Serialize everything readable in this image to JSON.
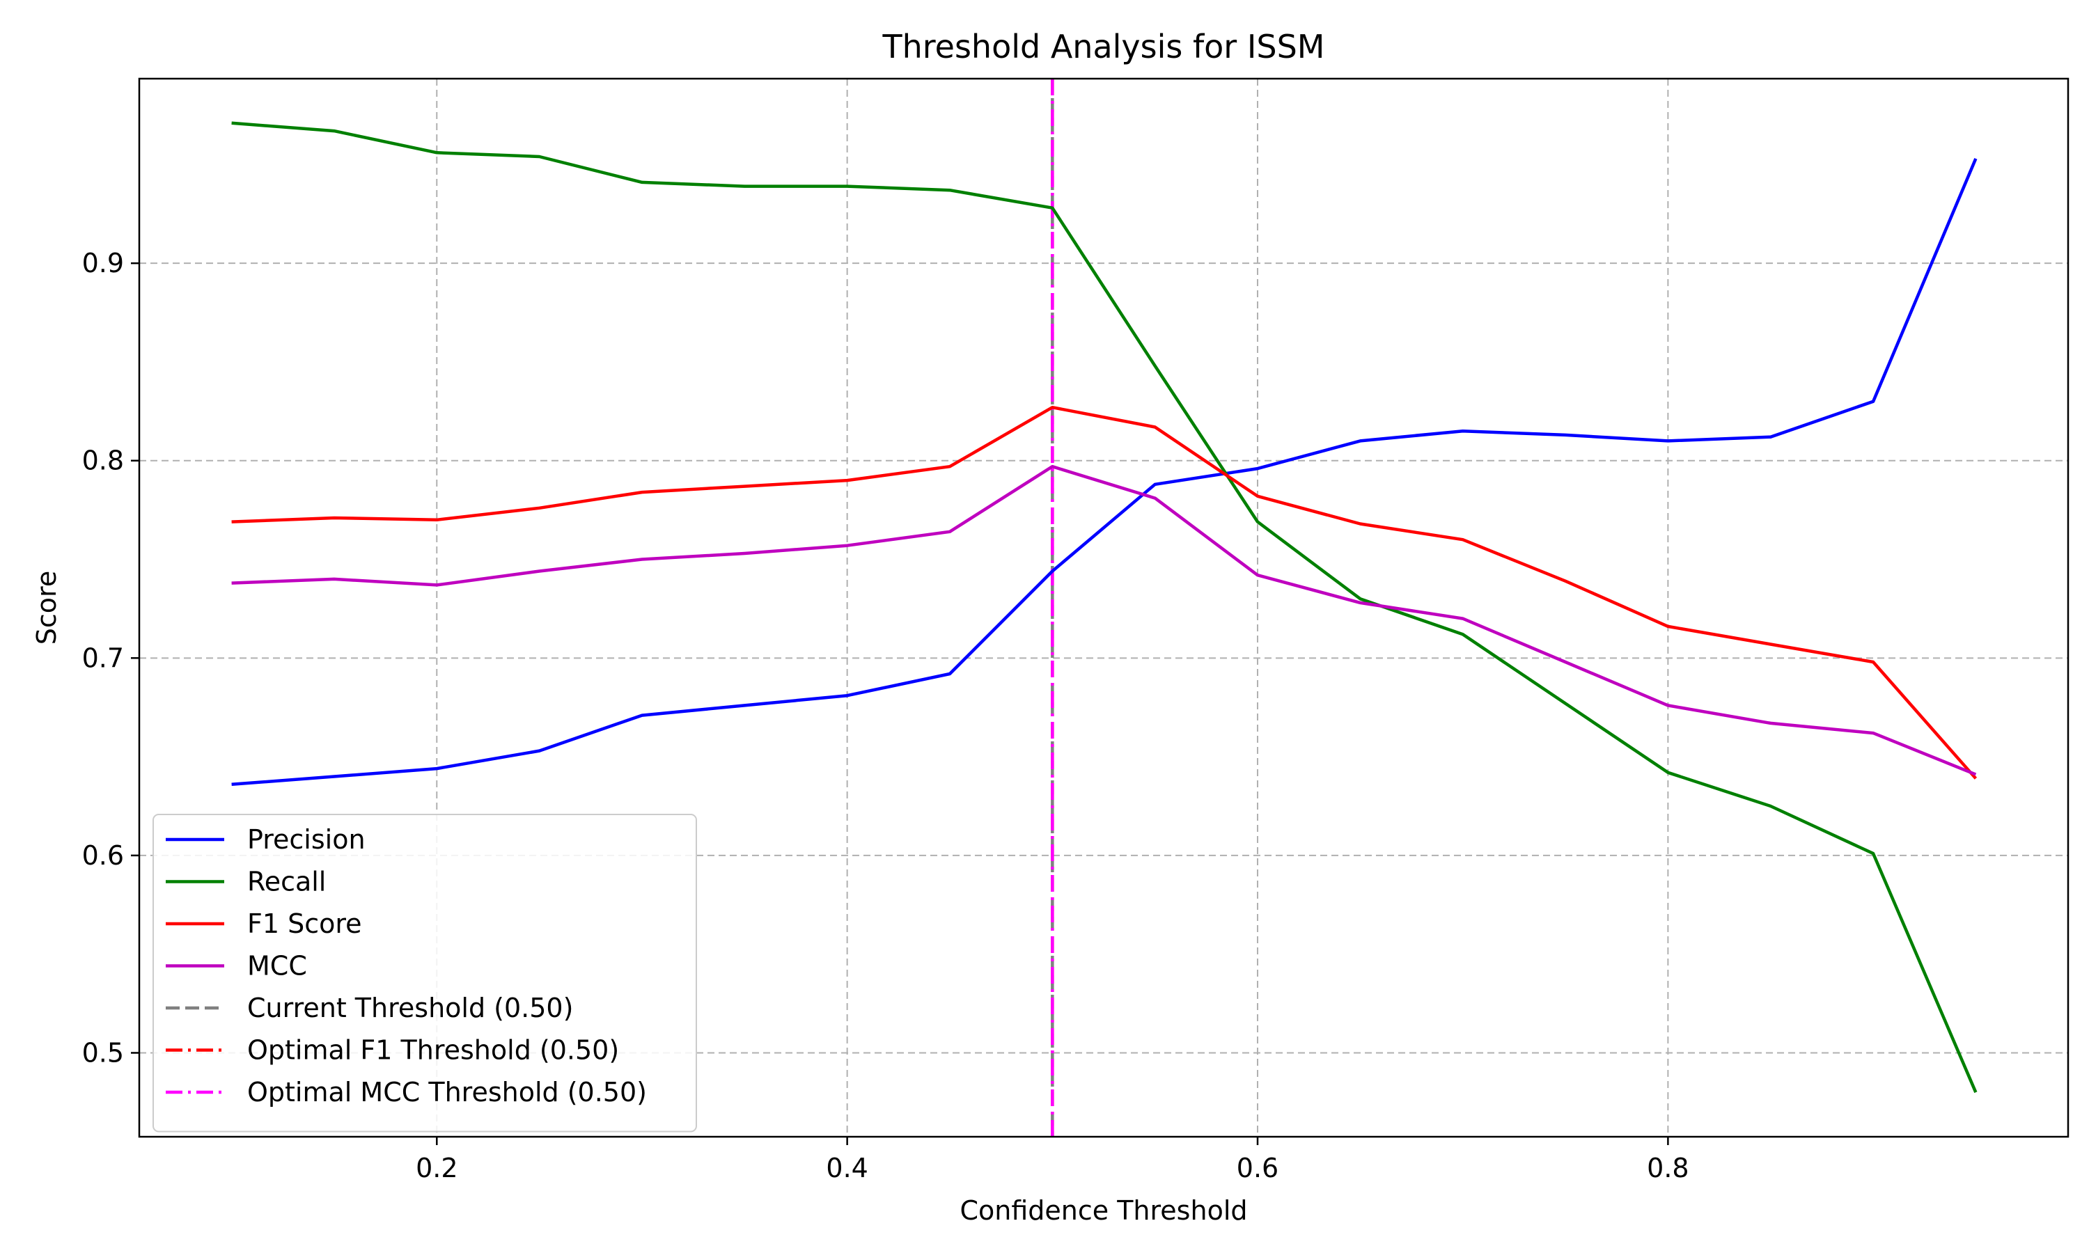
{
  "chart_data": {
    "type": "line",
    "title": "Threshold Analysis for ISSM",
    "xlabel": "Confidence Threshold",
    "ylabel": "Score",
    "xlim": [
      0.055,
      0.995
    ],
    "ylim": [
      0.4575,
      0.9935
    ],
    "x_ticks": [
      0.2,
      0.4,
      0.6,
      0.8
    ],
    "x_tick_labels": [
      "0.2",
      "0.4",
      "0.6",
      "0.8"
    ],
    "y_ticks": [
      0.5,
      0.6,
      0.7,
      0.8,
      0.9
    ],
    "y_tick_labels": [
      "0.5",
      "0.6",
      "0.7",
      "0.8",
      "0.9"
    ],
    "grid": true,
    "legend_position": "lower-left",
    "x": [
      0.1,
      0.15,
      0.2,
      0.25,
      0.3,
      0.35,
      0.4,
      0.45,
      0.5,
      0.55,
      0.6,
      0.65,
      0.7,
      0.75,
      0.8,
      0.85,
      0.9,
      0.95
    ],
    "series": [
      {
        "name": "Precision",
        "color": "#0000ff",
        "values": [
          0.636,
          0.64,
          0.644,
          0.653,
          0.671,
          0.676,
          0.681,
          0.692,
          0.744,
          0.788,
          0.796,
          0.81,
          0.815,
          0.813,
          0.81,
          0.812,
          0.83,
          0.953
        ]
      },
      {
        "name": "Recall",
        "color": "#008000",
        "values": [
          0.971,
          0.967,
          0.956,
          0.954,
          0.941,
          0.939,
          0.939,
          0.937,
          0.928,
          0.848,
          0.769,
          0.73,
          0.712,
          0.677,
          0.642,
          0.625,
          0.601,
          0.48
        ]
      },
      {
        "name": "F1 Score",
        "color": "#ff0000",
        "values": [
          0.769,
          0.771,
          0.77,
          0.776,
          0.784,
          0.787,
          0.79,
          0.797,
          0.827,
          0.817,
          0.782,
          0.768,
          0.76,
          0.739,
          0.716,
          0.707,
          0.698,
          0.639
        ]
      },
      {
        "name": "MCC",
        "color": "#bf00bf",
        "values": [
          0.738,
          0.74,
          0.737,
          0.744,
          0.75,
          0.753,
          0.757,
          0.764,
          0.797,
          0.781,
          0.742,
          0.728,
          0.72,
          0.698,
          0.676,
          0.667,
          0.662,
          0.641
        ]
      }
    ],
    "vlines": [
      {
        "name": "Current Threshold (0.50)",
        "x": 0.5,
        "color": "#808080",
        "style": "dashed"
      },
      {
        "name": "Optimal F1 Threshold (0.50)",
        "x": 0.5,
        "color": "#ff0000",
        "style": "dashdot"
      },
      {
        "name": "Optimal MCC Threshold (0.50)",
        "x": 0.5,
        "color": "#ff00ff",
        "style": "dashdot"
      }
    ]
  }
}
